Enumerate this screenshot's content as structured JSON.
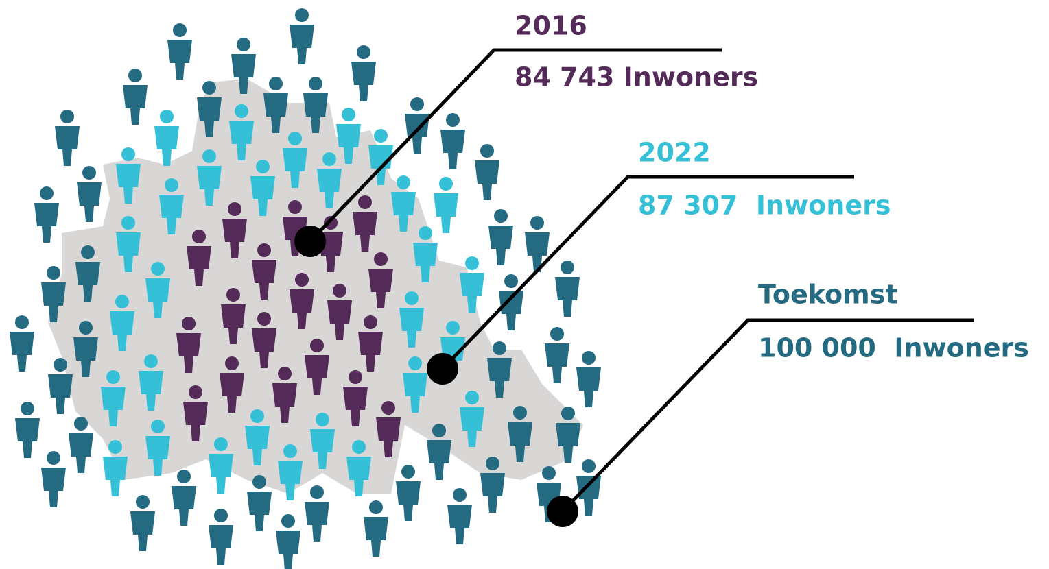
{
  "callouts": [
    {
      "year": "2016",
      "label": "84 743 Inwoners"
    },
    {
      "year": "2022",
      "label": "87 307  Inwoners"
    },
    {
      "year": "Toekomst",
      "label": "100 000  Inwoners"
    }
  ]
}
